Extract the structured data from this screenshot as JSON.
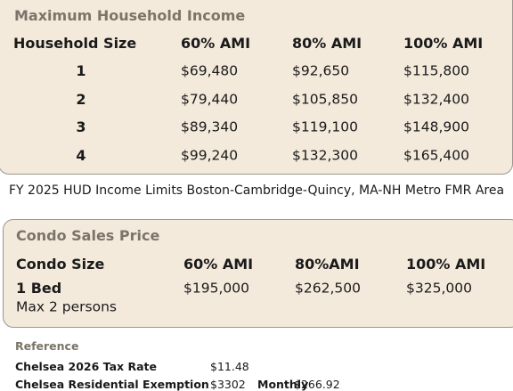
{
  "household_income": {
    "title": "Maximum Household Income",
    "header": [
      "Household Size",
      "60% AMI",
      "80% AMI",
      "100% AMI"
    ],
    "rows": [
      [
        "1",
        "$69,480",
        "$92,650",
        "$115,800"
      ],
      [
        "2",
        "$79,440",
        "$105,850",
        "$132,400"
      ],
      [
        "3",
        "$89,340",
        "$119,100",
        "$148,900"
      ],
      [
        "4",
        "$99,240",
        "$132,300",
        "$165,400"
      ]
    ]
  },
  "caption": "FY 2025 HUD Income Limits Boston-Cambridge-Quincy, MA-NH Metro FMR Area",
  "condo": {
    "title": "Condo Sales Price",
    "header": [
      "Condo Size",
      "60% AMI",
      "80%AMI",
      "100% AMI"
    ],
    "rows": [
      [
        "1 Bed",
        "$195,000",
        "$262,500",
        "$325,000"
      ]
    ],
    "note": "Max 2 persons"
  },
  "reference": {
    "title": "Reference",
    "rows": [
      [
        "Chelsea 2026 Tax Rate",
        "$11.48"
      ],
      [
        "Chelsea Residential Exemption",
        "$3302",
        "Monthly",
        "$266.92"
      ]
    ]
  }
}
